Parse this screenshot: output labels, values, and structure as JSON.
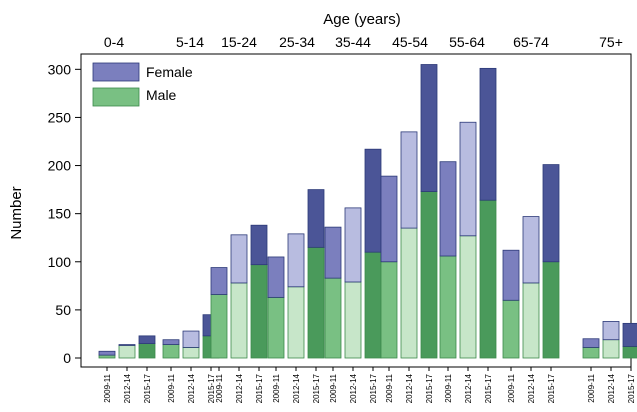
{
  "chart_data": {
    "type": "bar",
    "stacked": true,
    "top_axis_title": "Age (years)",
    "ylabel": "Number",
    "ylim": [
      0,
      310
    ],
    "yticks": [
      0,
      50,
      100,
      150,
      200,
      250,
      300
    ],
    "grid": false,
    "legend_position": "top-left",
    "groups": [
      "0-4",
      "5-14",
      "15-24",
      "25-34",
      "35-44",
      "45-54",
      "55-64",
      "65-74",
      "75+"
    ],
    "periods": [
      "2009-11",
      "2012-14",
      "2015-17"
    ],
    "series": [
      {
        "name": "Male",
        "colors": [
          "#79c083",
          "#c7e6c9",
          "#4a9a5b"
        ],
        "values": [
          [
            3,
            13,
            15
          ],
          [
            14,
            11,
            23
          ],
          [
            66,
            78,
            97
          ],
          [
            63,
            74,
            115
          ],
          [
            83,
            79,
            110
          ],
          [
            100,
            135,
            173
          ],
          [
            106,
            127,
            164
          ],
          [
            60,
            78,
            100
          ],
          [
            11,
            19,
            12
          ]
        ]
      },
      {
        "name": "Female",
        "colors": [
          "#7b7fbe",
          "#b8bce0",
          "#4b5597"
        ],
        "values": [
          [
            4,
            1,
            8
          ],
          [
            5,
            17,
            22
          ],
          [
            28,
            50,
            41
          ],
          [
            42,
            55,
            60
          ],
          [
            53,
            77,
            107
          ],
          [
            89,
            100,
            132
          ],
          [
            98,
            118,
            137
          ],
          [
            52,
            69,
            101
          ],
          [
            9,
            19,
            24
          ]
        ]
      }
    ]
  }
}
